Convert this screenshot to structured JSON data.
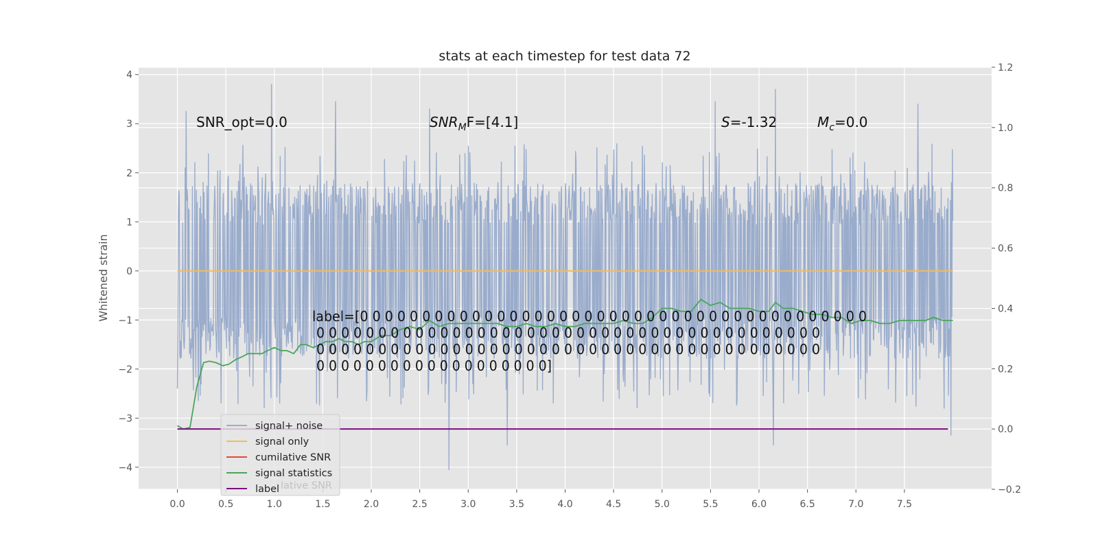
{
  "chart_data": {
    "type": "line",
    "title": "stats at each timestep for test data 72",
    "xlabel": "",
    "ylabel": "Whitened strain",
    "xlim": [
      -0.4,
      8.4
    ],
    "ylim": [
      -4.45,
      4.15
    ],
    "y2lim": [
      -0.2,
      1.2
    ],
    "x_ticks": [
      "0.0",
      "0.5",
      "1.0",
      "1.5",
      "2.0",
      "2.5",
      "3.0",
      "3.5",
      "4.0",
      "4.5",
      "5.0",
      "5.5",
      "6.0",
      "6.5",
      "7.0",
      "7.5"
    ],
    "y_ticks": [
      "4",
      "3",
      "2",
      "1",
      "0",
      "−1",
      "−2",
      "−3",
      "−4"
    ],
    "y2_ticks": [
      "1.2",
      "1.0",
      "0.8",
      "0.6",
      "0.4",
      "0.2",
      "0.0",
      "−0.2"
    ],
    "grid": true,
    "legend_position": "lower-left",
    "legend_overlap_text": "lative SNR",
    "series": [
      {
        "name": "signal+ noise",
        "color": "#9aaccc",
        "axis": "left",
        "x_range": [
          0.0,
          8.0
        ],
        "sample_count": 1600,
        "typical_upper_envelope": 1.7,
        "typical_lower_envelope": -2.0,
        "peak_values": [
          {
            "x": 0.09,
            "y": 3.25
          },
          {
            "x": 0.97,
            "y": 3.8
          },
          {
            "x": 1.63,
            "y": 3.45
          },
          {
            "x": 2.6,
            "y": 3.3
          },
          {
            "x": 2.8,
            "y": -4.05
          },
          {
            "x": 3.4,
            "y": -3.55
          },
          {
            "x": 5.55,
            "y": 3.45
          },
          {
            "x": 6.17,
            "y": 3.7
          },
          {
            "x": 6.15,
            "y": -3.55
          },
          {
            "x": 7.64,
            "y": 3.4
          },
          {
            "x": 7.98,
            "y": -3.35
          }
        ]
      },
      {
        "name": "signal only",
        "color": "#f0bc5e",
        "axis": "left",
        "x": [
          0.0,
          8.0
        ],
        "values": [
          0.0,
          0.0
        ]
      },
      {
        "name": "cumilative SNR",
        "color": "#e24a33",
        "axis": "right",
        "x": [],
        "values": []
      },
      {
        "name": "signal statistics",
        "color": "#4aa55a",
        "axis": "right",
        "x": [
          0.0,
          0.06,
          0.13,
          0.2,
          0.27,
          0.33,
          0.4,
          0.47,
          0.53,
          0.6,
          0.67,
          0.73,
          0.8,
          0.87,
          0.93,
          1.0,
          1.07,
          1.13,
          1.2,
          1.27,
          1.33,
          1.4,
          1.47,
          1.53,
          1.6,
          1.67,
          1.73,
          1.8,
          1.87,
          1.93,
          2.0,
          2.1,
          2.2,
          2.3,
          2.4,
          2.5,
          2.6,
          2.7,
          2.8,
          2.9,
          3.0,
          3.1,
          3.2,
          3.3,
          3.4,
          3.5,
          3.6,
          3.7,
          3.8,
          3.9,
          4.0,
          4.1,
          4.2,
          4.3,
          4.4,
          4.5,
          4.6,
          4.7,
          4.8,
          4.9,
          5.0,
          5.1,
          5.2,
          5.3,
          5.4,
          5.5,
          5.6,
          5.7,
          5.8,
          5.9,
          6.0,
          6.1,
          6.17,
          6.25,
          6.35,
          6.45,
          6.55,
          6.65,
          6.75,
          6.85,
          6.95,
          7.05,
          7.15,
          7.25,
          7.35,
          7.45,
          7.55,
          7.65,
          7.72,
          7.8,
          7.9,
          8.0
        ],
        "values": [
          0.011,
          0.0,
          0.005,
          0.14,
          0.22,
          0.225,
          0.22,
          0.21,
          0.215,
          0.23,
          0.24,
          0.25,
          0.25,
          0.25,
          0.26,
          0.27,
          0.26,
          0.26,
          0.25,
          0.28,
          0.28,
          0.27,
          0.28,
          0.29,
          0.29,
          0.3,
          0.29,
          0.29,
          0.28,
          0.29,
          0.29,
          0.31,
          0.31,
          0.33,
          0.34,
          0.33,
          0.36,
          0.34,
          0.35,
          0.35,
          0.35,
          0.35,
          0.35,
          0.35,
          0.34,
          0.34,
          0.35,
          0.34,
          0.34,
          0.35,
          0.34,
          0.34,
          0.35,
          0.35,
          0.35,
          0.35,
          0.36,
          0.35,
          0.35,
          0.37,
          0.4,
          0.4,
          0.39,
          0.39,
          0.43,
          0.41,
          0.42,
          0.4,
          0.4,
          0.4,
          0.39,
          0.39,
          0.42,
          0.4,
          0.4,
          0.39,
          0.38,
          0.38,
          0.37,
          0.37,
          0.35,
          0.36,
          0.36,
          0.35,
          0.35,
          0.36,
          0.36,
          0.36,
          0.36,
          0.37,
          0.36,
          0.36
        ]
      },
      {
        "name": "label",
        "color": "#7b0f7f",
        "axis": "right",
        "x": [
          0.0,
          7.95
        ],
        "values": [
          0.0,
          0.0
        ]
      }
    ],
    "annotations": {
      "snr_opt": "SNR_opt=0.0",
      "snr_mf_sym": "SNR",
      "snr_mf_sub": "M",
      "snr_mf_rest": "F=[4.1]",
      "s_sym": "S",
      "s_rest": "=-1.32",
      "mc_sym": "M",
      "mc_sub": "c",
      "mc_rest": "=0.0",
      "label_lines": [
        "label=[0 0 0 0 0 0 0 0 0 0 0 0 0 0 0 0 0 0 0 0 0 0 0 0 0 0 0 0 0 0 0 0 0 0 0 0 0 0 0 0 0",
        " 0 0 0 0 0 0 0 0 0 0 0 0 0 0 0 0 0 0 0 0 0 0 0 0 0 0 0 0 0 0 0 0 0 0 0 0 0 0 0 0 0",
        " 0 0 0 0 0 0 0 0 0 0 0 0 0 0 0 0 0 0 0 0 0 0 0 0 0 0 0 0 0 0 0 0 0 0 0 0 0 0 0 0 0",
        " 0 0 0 0 0 0 0 0 0 0 0 0 0 0 0 0 0 0 0]"
      ]
    }
  }
}
